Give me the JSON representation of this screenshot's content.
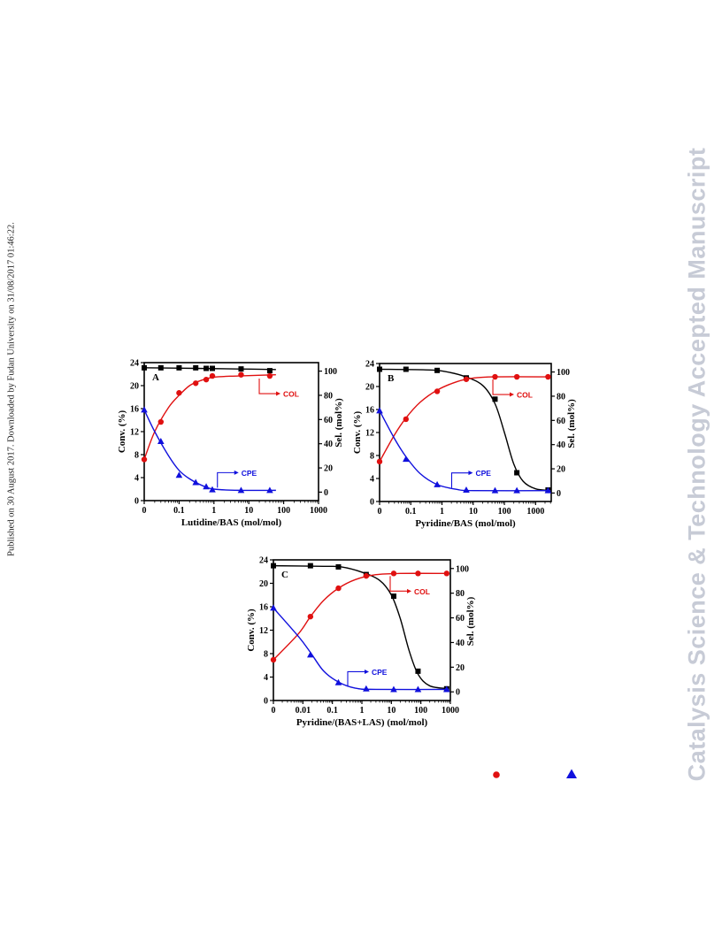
{
  "side_note": "Published on 30 August 2017. Downloaded by Fudan University on 31/08/2017 01:46:22.",
  "watermark": "Catalysis Science & Technology Accepted Manuscript",
  "colors": {
    "conv": "#000000",
    "col": "#e01010",
    "cpe": "#1010dd"
  },
  "chart_data": [
    {
      "type": "scatter",
      "panel_label": "A",
      "xlabel": "Lutidine/BAS (mol/mol)",
      "ylabel_left": "Conv. (%)",
      "ylabel_right": "Sel. (mol%)",
      "x_ticks": [
        "0",
        "0.1",
        "1",
        "10",
        "100",
        "1000"
      ],
      "y_left_ticks": [
        "0",
        "4",
        "8",
        "12",
        "16",
        "20",
        "24"
      ],
      "y_right_ticks": [
        "0",
        "20",
        "40",
        "60",
        "80",
        "100"
      ],
      "ylim_left": [
        0,
        24
      ],
      "ylim_right": [
        -7,
        107
      ],
      "annotations": [
        "COL",
        "CPE"
      ],
      "series": [
        {
          "name": "Conv",
          "axis": "left",
          "marker": "square",
          "x": [
            0,
            0.03,
            0.1,
            0.3,
            0.6,
            0.9,
            6,
            40
          ],
          "y": [
            23.1,
            23.1,
            23.1,
            23.1,
            23.0,
            23.0,
            22.9,
            22.6
          ],
          "fit": [
            [
              0,
              23.1
            ],
            [
              0.3,
              23.0
            ],
            [
              5,
              22.9
            ],
            [
              60,
              22.8
            ]
          ]
        },
        {
          "name": "COL",
          "axis": "right",
          "marker": "circle",
          "x": [
            0,
            0.03,
            0.1,
            0.3,
            0.6,
            0.9,
            6,
            40
          ],
          "y": [
            27,
            58,
            82,
            90,
            93,
            96,
            97,
            96
          ],
          "fit": [
            [
              0,
              27
            ],
            [
              0.02,
              50
            ],
            [
              0.05,
              70
            ],
            [
              0.1,
              80
            ],
            [
              0.2,
              88
            ],
            [
              0.4,
              92
            ],
            [
              1,
              95
            ],
            [
              5,
              96
            ],
            [
              60,
              97
            ]
          ]
        },
        {
          "name": "CPE",
          "axis": "right",
          "marker": "triangle",
          "x": [
            0,
            0.03,
            0.1,
            0.3,
            0.6,
            0.9,
            6,
            40
          ],
          "y": [
            68,
            42,
            14,
            8,
            4.5,
            2,
            1.5,
            1.5
          ],
          "fit": [
            [
              0,
              68
            ],
            [
              0.02,
              50
            ],
            [
              0.05,
              30
            ],
            [
              0.1,
              18
            ],
            [
              0.2,
              11
            ],
            [
              0.5,
              5
            ],
            [
              1,
              2.5
            ],
            [
              5,
              1.5
            ],
            [
              60,
              1.5
            ]
          ]
        }
      ]
    },
    {
      "type": "scatter",
      "panel_label": "B",
      "xlabel": "Pyridine/BAS (mol/mol)",
      "ylabel_left": "Conv. (%)",
      "ylabel_right": "Sel. (mol%)",
      "x_ticks": [
        "0",
        "0.1",
        "1",
        "10",
        "100",
        "1000"
      ],
      "y_left_ticks": [
        "0",
        "4",
        "8",
        "12",
        "16",
        "20",
        "24"
      ],
      "y_right_ticks": [
        "0",
        "20",
        "40",
        "60",
        "80",
        "100"
      ],
      "ylim_left": [
        0,
        24
      ],
      "ylim_right": [
        -7,
        107
      ],
      "annotations": [
        "COL",
        "CPE"
      ],
      "series": [
        {
          "name": "Conv",
          "axis": "left",
          "marker": "square",
          "x": [
            0,
            0.07,
            0.7,
            6,
            50,
            250,
            2500
          ],
          "y": [
            23.0,
            23.0,
            22.8,
            21.5,
            17.8,
            5.0,
            2.0
          ],
          "fit": [
            [
              0,
              23.0
            ],
            [
              0.3,
              22.9
            ],
            [
              1,
              22.7
            ],
            [
              5,
              21.8
            ],
            [
              20,
              20.2
            ],
            [
              50,
              17
            ],
            [
              100,
              12
            ],
            [
              200,
              6.5
            ],
            [
              400,
              3.5
            ],
            [
              1000,
              2.2
            ],
            [
              3000,
              1.9
            ]
          ]
        },
        {
          "name": "COL",
          "axis": "right",
          "marker": "circle",
          "x": [
            0,
            0.07,
            0.7,
            6,
            50,
            250,
            2500
          ],
          "y": [
            26,
            61,
            84,
            94,
            96,
            96,
            96
          ],
          "fit": [
            [
              0,
              26
            ],
            [
              0.03,
              48
            ],
            [
              0.07,
              62
            ],
            [
              0.2,
              75
            ],
            [
              0.7,
              85
            ],
            [
              3,
              92
            ],
            [
              10,
              95
            ],
            [
              50,
              96
            ],
            [
              3000,
              96
            ]
          ]
        },
        {
          "name": "CPE",
          "axis": "right",
          "marker": "triangle",
          "x": [
            0,
            0.07,
            0.7,
            6,
            50,
            250,
            2500
          ],
          "y": [
            68,
            28,
            7,
            2.5,
            2,
            2,
            2
          ],
          "fit": [
            [
              0,
              68
            ],
            [
              0.03,
              45
            ],
            [
              0.07,
              30
            ],
            [
              0.2,
              16
            ],
            [
              0.7,
              7
            ],
            [
              3,
              3
            ],
            [
              10,
              2
            ],
            [
              3000,
              2
            ]
          ]
        }
      ]
    },
    {
      "type": "scatter",
      "panel_label": "C",
      "xlabel": "Pyridine/(BAS+LAS) (mol/mol)",
      "ylabel_left": "Conv. (%)",
      "ylabel_right": "Sel. (mol%)",
      "x_ticks": [
        "0",
        "0.01",
        "0.1",
        "1",
        "10",
        "100",
        "1000"
      ],
      "y_left_ticks": [
        "0",
        "4",
        "8",
        "12",
        "16",
        "20",
        "24"
      ],
      "y_right_ticks": [
        "0",
        "20",
        "40",
        "60",
        "80",
        "100"
      ],
      "ylim_left": [
        0,
        24
      ],
      "ylim_right": [
        -7,
        107
      ],
      "annotations": [
        "COL",
        "CPE"
      ],
      "series": [
        {
          "name": "Conv",
          "axis": "left",
          "marker": "square",
          "x": [
            0,
            0.018,
            0.16,
            1.4,
            12,
            80,
            750
          ],
          "y": [
            23.0,
            23.0,
            22.8,
            21.5,
            17.8,
            5.0,
            2.0
          ],
          "fit": [
            [
              0,
              23.0
            ],
            [
              0.05,
              22.9
            ],
            [
              0.2,
              22.8
            ],
            [
              1,
              21.9
            ],
            [
              4,
              20.5
            ],
            [
              10,
              18
            ],
            [
              20,
              14
            ],
            [
              40,
              8.5
            ],
            [
              80,
              4.5
            ],
            [
              200,
              2.5
            ],
            [
              900,
              2.0
            ]
          ]
        },
        {
          "name": "COL",
          "axis": "right",
          "marker": "circle",
          "x": [
            0,
            0.018,
            0.16,
            1.4,
            12,
            80,
            750
          ],
          "y": [
            26,
            61,
            84,
            94,
            96,
            96,
            96
          ],
          "fit": [
            [
              0,
              26
            ],
            [
              0.007,
              47
            ],
            [
              0.018,
              61
            ],
            [
              0.05,
              74
            ],
            [
              0.16,
              84
            ],
            [
              0.6,
              91
            ],
            [
              3,
              95
            ],
            [
              20,
              96
            ],
            [
              900,
              96
            ]
          ]
        },
        {
          "name": "CPE",
          "axis": "right",
          "marker": "triangle",
          "x": [
            0,
            0.018,
            0.16,
            1.4,
            12,
            80,
            750
          ],
          "y": [
            68,
            30,
            7.5,
            2.5,
            2,
            2,
            2
          ],
          "fit": [
            [
              0,
              68
            ],
            [
              0.007,
              45
            ],
            [
              0.018,
              32
            ],
            [
              0.05,
              17
            ],
            [
              0.16,
              8
            ],
            [
              0.6,
              3
            ],
            [
              3,
              2
            ],
            [
              900,
              2
            ]
          ]
        }
      ]
    }
  ]
}
